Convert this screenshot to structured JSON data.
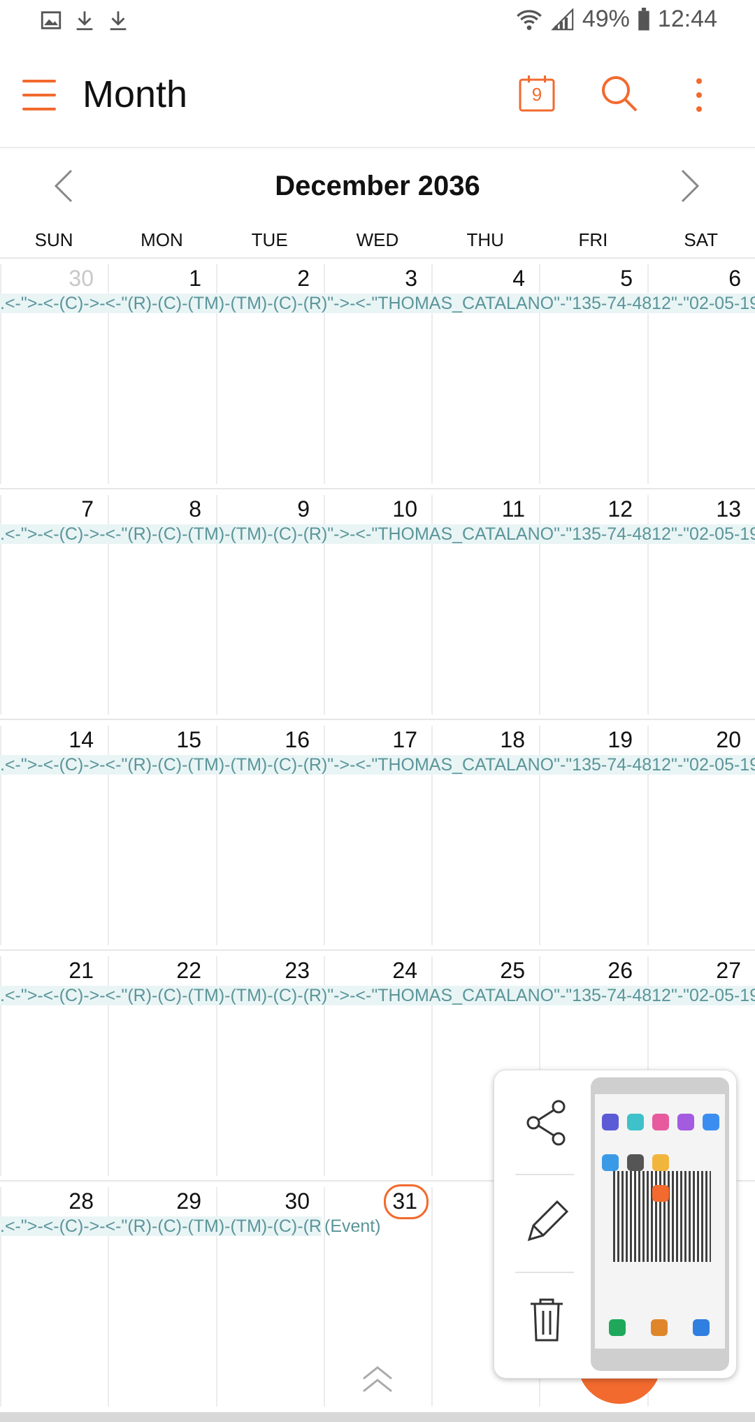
{
  "status_bar": {
    "battery": "49%",
    "time": "12:44",
    "icons": [
      "gallery-icon",
      "download-icon",
      "download-icon",
      "wifi-icon",
      "signal-icon",
      "battery-icon"
    ]
  },
  "app_bar": {
    "title": "Month",
    "today_day": "9",
    "icons": [
      "menu-icon",
      "calendar-today-icon",
      "search-icon",
      "more-vert-icon"
    ]
  },
  "calendar": {
    "month_label": "December 2036",
    "weekdays": [
      "SUN",
      "MON",
      "TUE",
      "WED",
      "THU",
      "FRI",
      "SAT"
    ],
    "weeks": [
      {
        "days": [
          "30",
          "1",
          "2",
          "3",
          "4",
          "5",
          "6"
        ],
        "event_text": ".<-\">-<-(C)->-<-\"(R)-(C)-(TM)-(TM)-(C)-(R)\"->-<-\"THOMAS_CATALANO\"-\"135-74-4812\"-\"02-05-19"
      },
      {
        "days": [
          "7",
          "8",
          "9",
          "10",
          "11",
          "12",
          "13"
        ],
        "event_text": ".<-\">-<-(C)->-<-\"(R)-(C)-(TM)-(TM)-(C)-(R)\"->-<-\"THOMAS_CATALANO\"-\"135-74-4812\"-\"02-05-19"
      },
      {
        "days": [
          "14",
          "15",
          "16",
          "17",
          "18",
          "19",
          "20"
        ],
        "event_text": ".<-\">-<-(C)->-<-\"(R)-(C)-(TM)-(TM)-(C)-(R)\"->-<-\"THOMAS_CATALANO\"-\"135-74-4812\"-\"02-05-19"
      },
      {
        "days": [
          "21",
          "22",
          "23",
          "24",
          "25",
          "26",
          "27"
        ],
        "event_text": ".<-\">-<-(C)->-<-\"(R)-(C)-(TM)-(TM)-(C)-(R)\"->-<-\"THOMAS_CATALANO\"-\"135-74-4812\"-\"02-05-19"
      },
      {
        "days": [
          "28",
          "29",
          "30",
          "31",
          "",
          "",
          ""
        ],
        "event_text": ".<-\">-<-(C)->-<-\"(R)-(C)-(TM)-(TM)-(C)-(R)",
        "event_extra": "(Event)"
      }
    ],
    "today": "31",
    "accent_color": "#f26a2e",
    "event_color": "#5a9599"
  },
  "popup": {
    "actions": [
      "share-icon",
      "edit-icon",
      "delete-icon"
    ]
  }
}
